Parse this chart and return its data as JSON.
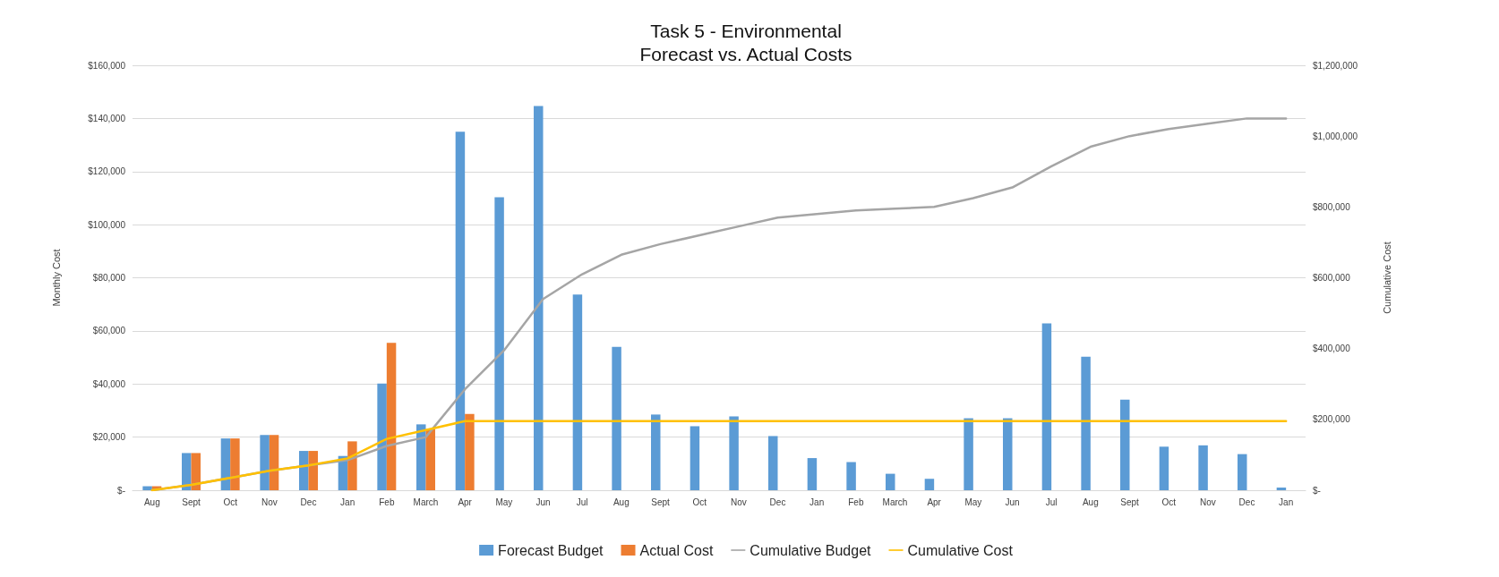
{
  "chart_data": {
    "type": "bar",
    "title": "Task 5 - Environmental",
    "subtitle": "Forecast vs. Actual Costs",
    "ylabel": "Monthly Cost",
    "y2label": "Cumulative Cost",
    "categories": [
      "Aug",
      "Sept",
      "Oct",
      "Nov",
      "Dec",
      "Jan",
      "Feb",
      "March",
      "Apr",
      "May",
      "Jun",
      "Jul",
      "Aug",
      "Sept",
      "Oct",
      "Nov",
      "Dec",
      "Jan",
      "Feb",
      "March",
      "Apr",
      "May",
      "Jun",
      "Jul",
      "Aug",
      "Sept",
      "Oct",
      "Nov",
      "Dec",
      "Jan"
    ],
    "series": [
      {
        "name": "Forecast Budget",
        "color": "#5b9bd5",
        "values": [
          1500,
          14000,
          19500,
          20800,
          14800,
          12900,
          40200,
          24800,
          135000,
          110300,
          144700,
          73700,
          54000,
          28500,
          24100,
          27800,
          20400,
          12100,
          10600,
          6200,
          4300,
          27100,
          27100,
          62800,
          50300,
          34100,
          16400,
          16900,
          13600,
          1000
        ]
      },
      {
        "name": "Actual Cost",
        "color": "#ed7d31",
        "values": [
          1500,
          14000,
          19500,
          20800,
          14800,
          18400,
          55500,
          23000,
          28700,
          null,
          null,
          null,
          null,
          null,
          null,
          null,
          null,
          null,
          null,
          null,
          null,
          null,
          null,
          null,
          null,
          null,
          null,
          null,
          null,
          null
        ]
      },
      {
        "name": "Cumulative Budget",
        "type": "line",
        "axis": "y2",
        "color": "#a5a5a5",
        "values": [
          0,
          15000,
          35000,
          55000,
          70000,
          85000,
          125000,
          150000,
          285000,
          395000,
          540000,
          610000,
          665000,
          695000,
          720000,
          745000,
          770000,
          780000,
          790000,
          795000,
          800000,
          825000,
          855000,
          915000,
          970000,
          1000000,
          1020000,
          1035000,
          1050000,
          1050000
        ]
      },
      {
        "name": "Cumulative Cost",
        "type": "line",
        "axis": "y2",
        "color": "#ffc000",
        "values": [
          0,
          15000,
          35000,
          55000,
          70000,
          90000,
          145000,
          170000,
          195000,
          195000,
          195000,
          195000,
          195000,
          195000,
          195000,
          195000,
          195000,
          195000,
          195000,
          195000,
          195000,
          195000,
          195000,
          195000,
          195000,
          195000,
          195000,
          195000,
          195000,
          195000
        ]
      }
    ],
    "ylim": [
      0,
      160000
    ],
    "yticks": [
      {
        "value": 0,
        "label": "$-"
      },
      {
        "value": 20000,
        "label": "$20,000"
      },
      {
        "value": 40000,
        "label": "$40,000"
      },
      {
        "value": 60000,
        "label": "$60,000"
      },
      {
        "value": 80000,
        "label": "$80,000"
      },
      {
        "value": 100000,
        "label": "$100,000"
      },
      {
        "value": 120000,
        "label": "$120,000"
      },
      {
        "value": 140000,
        "label": "$140,000"
      },
      {
        "value": 160000,
        "label": "$160,000"
      }
    ],
    "y2lim": [
      0,
      1200000
    ],
    "y2ticks": [
      {
        "value": 0,
        "label": "$-"
      },
      {
        "value": 200000,
        "label": "$200,000"
      },
      {
        "value": 400000,
        "label": "$400,000"
      },
      {
        "value": 600000,
        "label": "$600,000"
      },
      {
        "value": 800000,
        "label": "$800,000"
      },
      {
        "value": 1000000,
        "label": "$1,000,000"
      },
      {
        "value": 1200000,
        "label": "$1,200,000"
      }
    ],
    "grid": "y",
    "legend": "bottom",
    "marker": "none",
    "line_style": "solid"
  }
}
